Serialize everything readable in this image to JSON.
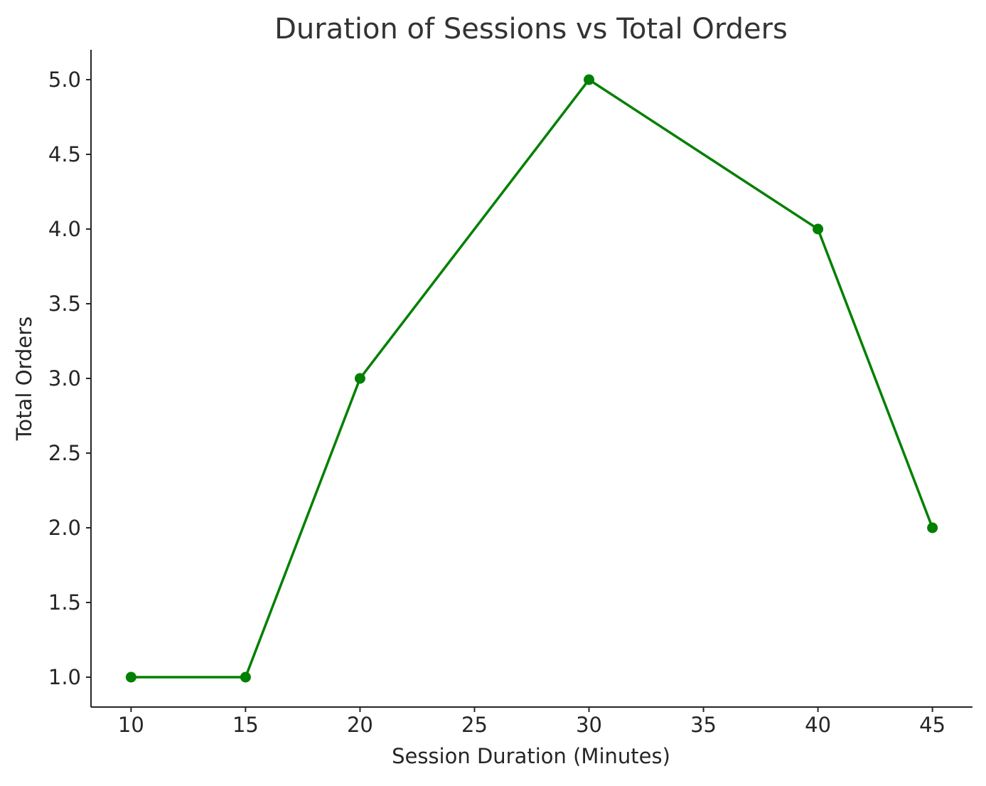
{
  "chart_data": {
    "type": "line",
    "title": "Duration of Sessions vs Total Orders",
    "xlabel": "Session Duration (Minutes)",
    "ylabel": "Total Orders",
    "x": [
      10,
      15,
      20,
      30,
      40,
      45
    ],
    "series": [
      {
        "values": [
          1,
          1,
          3,
          5,
          4,
          2
        ],
        "color": "#008000",
        "marker": "circle"
      }
    ],
    "xlim": [
      8.25,
      46.75
    ],
    "ylim": [
      0.8,
      5.2
    ],
    "xticks": [
      10,
      15,
      20,
      25,
      30,
      35,
      40,
      45
    ],
    "xtick_labels": [
      "10",
      "15",
      "20",
      "25",
      "30",
      "35",
      "40",
      "45"
    ],
    "yticks": [
      1.0,
      1.5,
      2.0,
      2.5,
      3.0,
      3.5,
      4.0,
      4.5,
      5.0
    ],
    "ytick_labels": [
      "1.0",
      "1.5",
      "2.0",
      "2.5",
      "3.0",
      "3.5",
      "4.0",
      "4.5",
      "5.0"
    ],
    "grid": false,
    "legend": "none",
    "spines": [
      "left",
      "bottom"
    ]
  }
}
